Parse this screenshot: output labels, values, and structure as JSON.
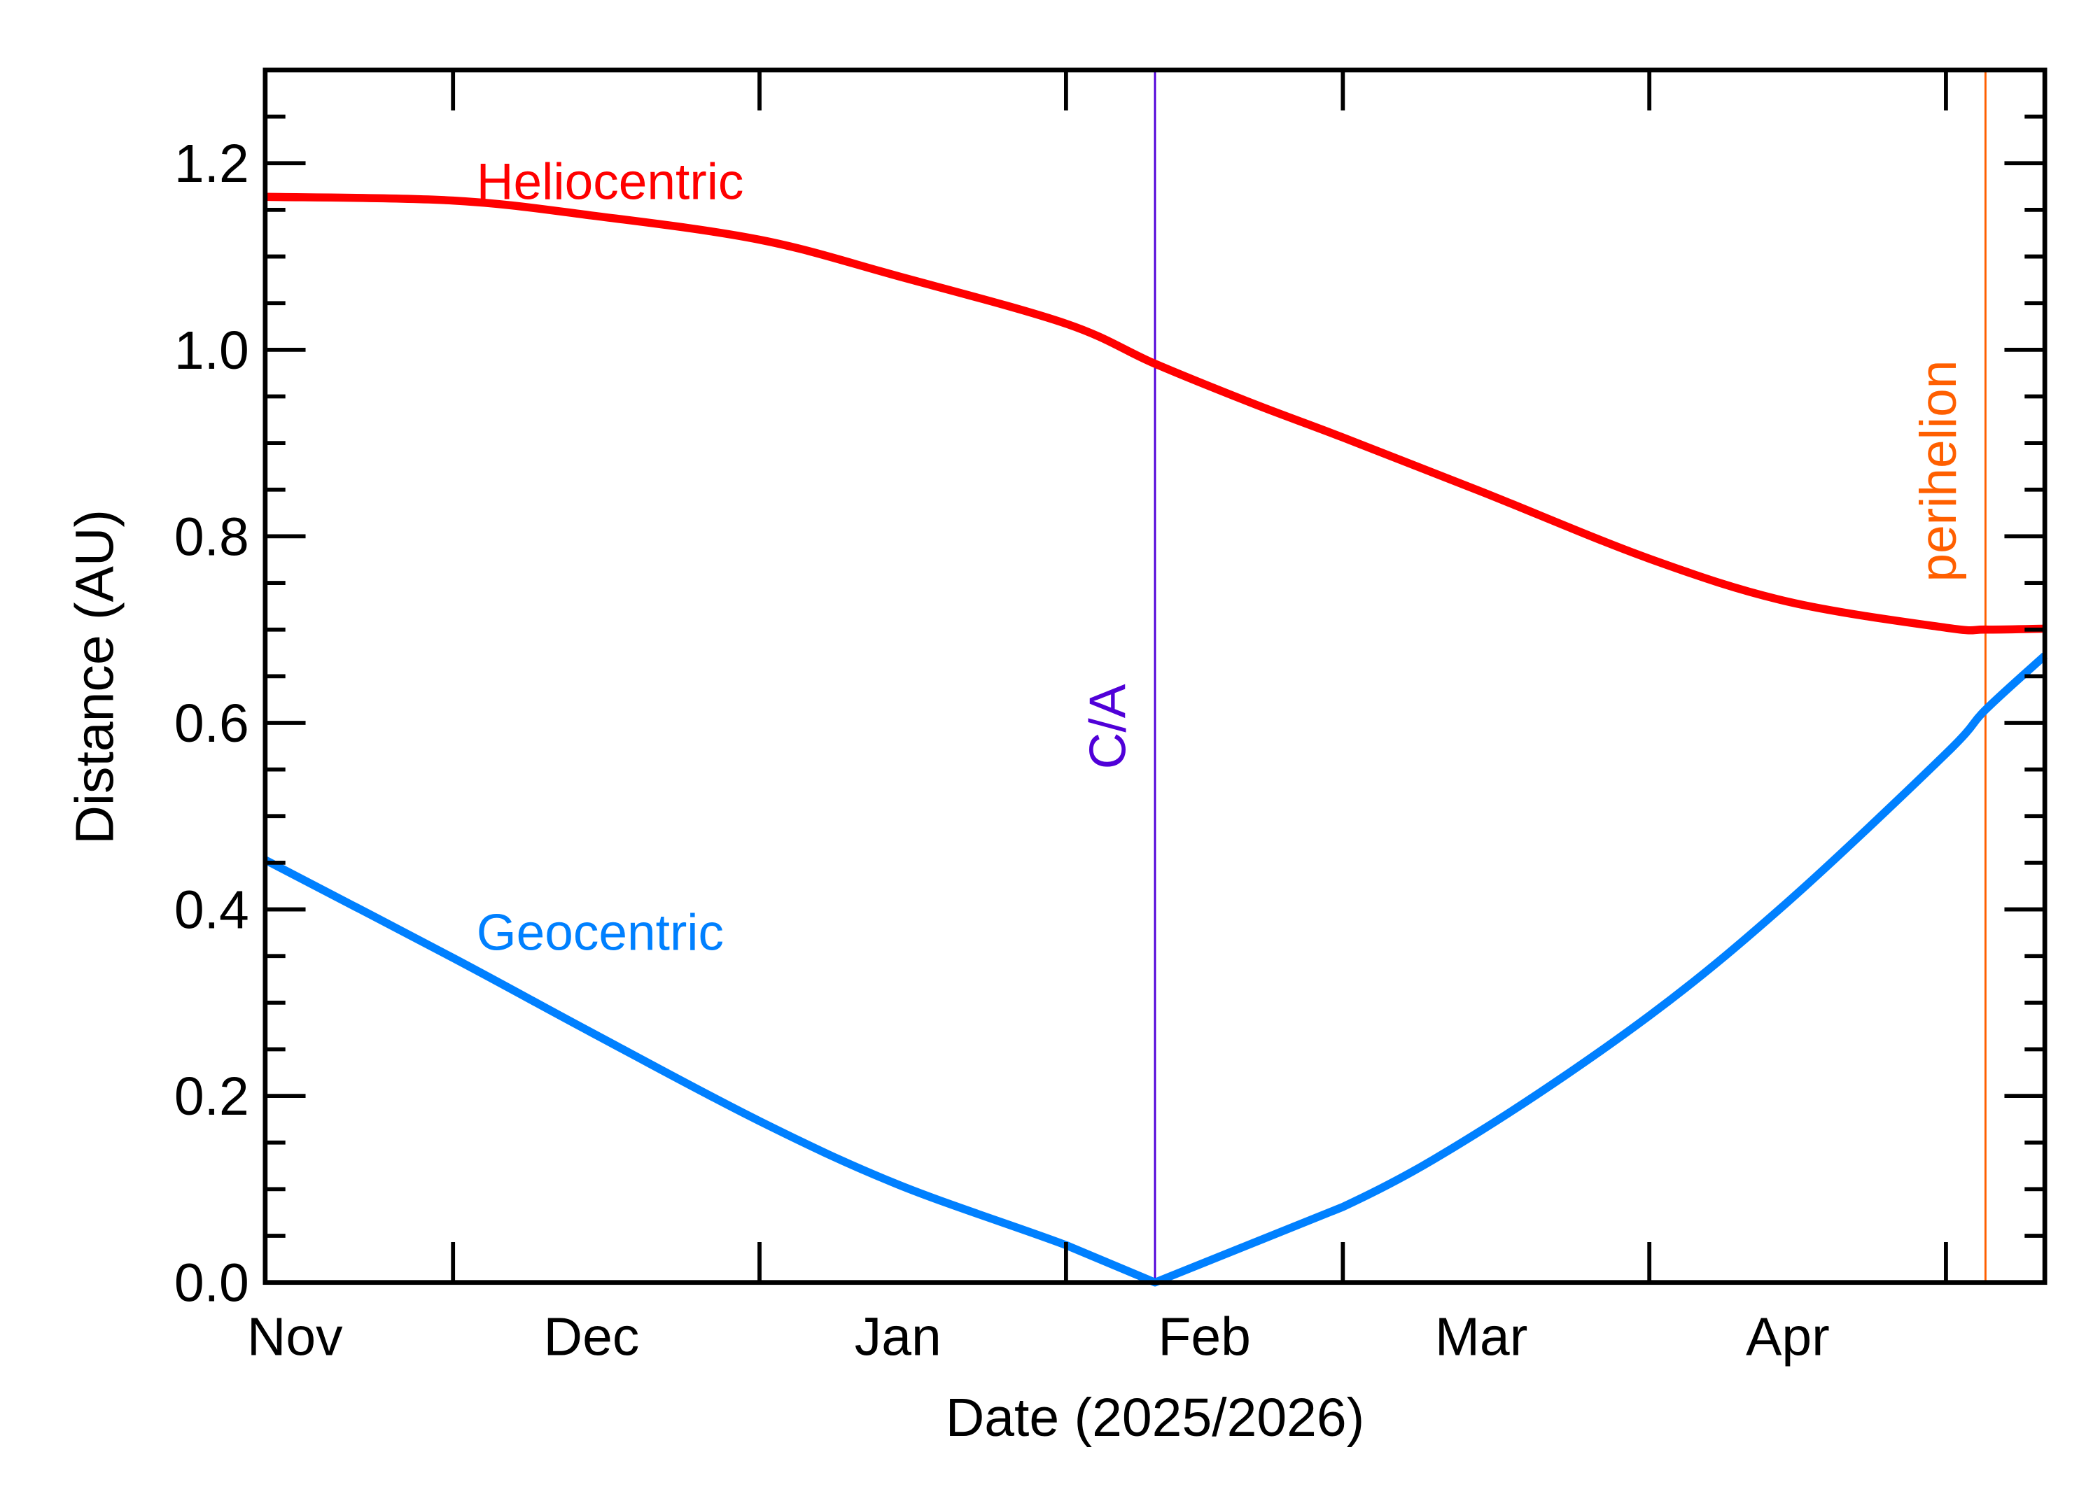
{
  "chart_data": {
    "type": "line",
    "xlabel": "Date (2025/2026)",
    "ylabel": "Distance (AU)",
    "xlim": [
      "2025-11-12",
      "2026-05-11"
    ],
    "ylim": [
      0,
      1.3
    ],
    "yticks": [
      "0.0",
      "0.2",
      "0.4",
      "0.6",
      "0.8",
      "1.0",
      "1.2"
    ],
    "xtick_labels": [
      {
        "label": "Nov",
        "date": "2025-11-15"
      },
      {
        "label": "Dec",
        "date": "2025-12-15"
      },
      {
        "label": "Jan",
        "date": "2026-01-15"
      },
      {
        "label": "Feb",
        "date": "2026-02-15"
      },
      {
        "label": "Mar",
        "date": "2026-03-15"
      },
      {
        "label": "Apr",
        "date": "2026-04-15"
      }
    ],
    "major_ticks": [
      "2025-12-01",
      "2026-01-01",
      "2026-02-01",
      "2026-03-01",
      "2026-04-01",
      "2026-05-01"
    ],
    "grid": false,
    "series": [
      {
        "name": "Heliocentric",
        "color": "#ff0000",
        "x": [
          "2025-11-12",
          "2025-12-01",
          "2025-12-15",
          "2026-01-01",
          "2026-01-15",
          "2026-02-01",
          "2026-02-10",
          "2026-02-20",
          "2026-03-01",
          "2026-03-15",
          "2026-04-01",
          "2026-04-15",
          "2026-05-01",
          "2026-05-05",
          "2026-05-11"
        ],
        "y": [
          1.164,
          1.16,
          1.144,
          1.118,
          1.079,
          1.028,
          0.985,
          0.942,
          0.906,
          0.848,
          0.776,
          0.73,
          0.702,
          0.7,
          0.701
        ]
      },
      {
        "name": "Geocentric",
        "color": "#0080ff",
        "x": [
          "2025-11-12",
          "2025-12-01",
          "2025-12-15",
          "2026-01-01",
          "2026-01-15",
          "2026-02-01",
          "2026-02-10",
          "2026-03-01",
          "2026-03-15",
          "2026-04-01",
          "2026-04-15",
          "2026-05-01",
          "2026-05-05",
          "2026-05-11"
        ],
        "y": [
          0.453,
          0.348,
          0.268,
          0.173,
          0.105,
          0.04,
          0.0,
          0.081,
          0.163,
          0.286,
          0.408,
          0.567,
          0.614,
          0.672
        ]
      }
    ],
    "annotations": [
      {
        "label": "C/A",
        "date": "2026-02-10",
        "color": "#5000d8"
      },
      {
        "label": "perihelion",
        "date": "2026-05-05",
        "color": "#ff5f00"
      }
    ]
  }
}
